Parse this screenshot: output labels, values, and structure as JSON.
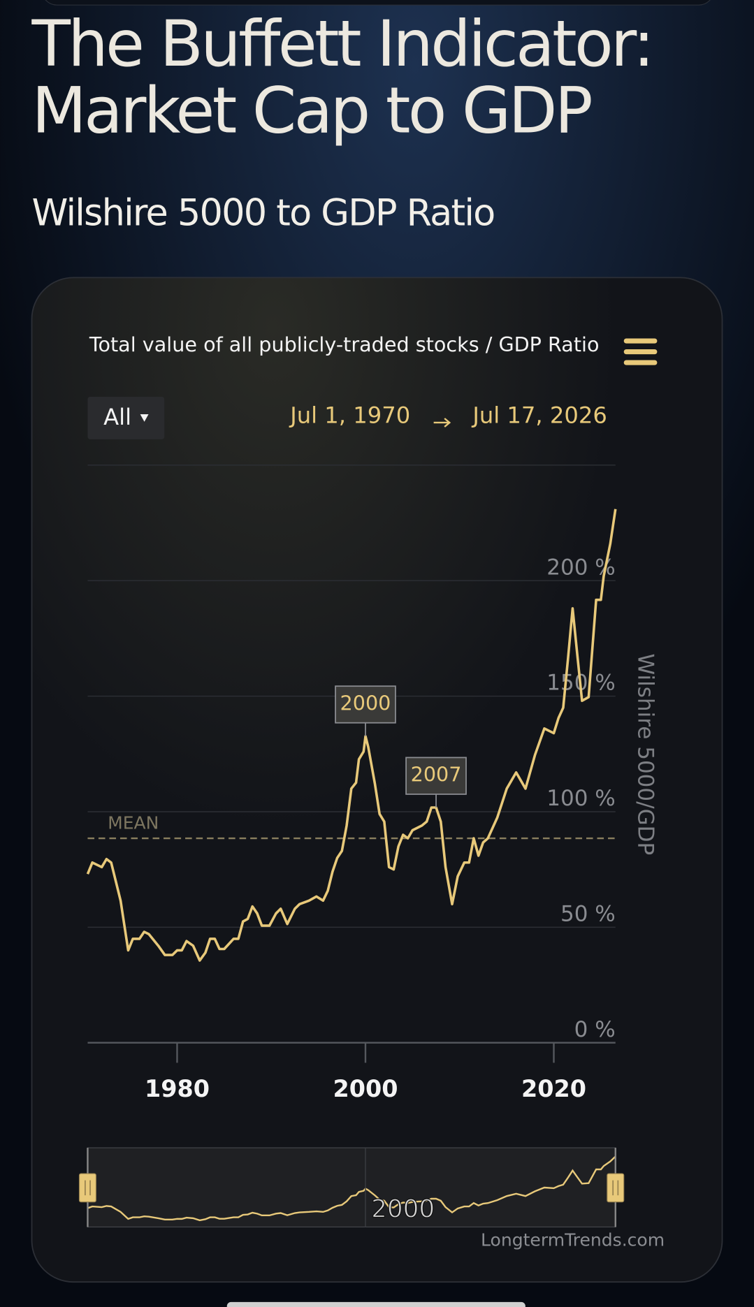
{
  "header": {
    "title_lines": [
      "The Buffett Indicator:",
      "Market Cap to GDP"
    ],
    "subtitle": "Wilshire 5000 to GDP Ratio",
    "range_button": "All",
    "date_from": "Jul 1, 1970",
    "date_to": "Jul 17, 2026",
    "credit": "LongtermTrends.com"
  },
  "chart_data": {
    "type": "line",
    "title": "Total value of all publicly-traded stocks / GDP Ratio",
    "y_label": "Wilshire 5000/GDP",
    "color": "#e8c97a",
    "x": [
      1970.5,
      1971,
      1972,
      1972.5,
      1973,
      1974,
      1974.8,
      1975.3,
      1976,
      1976.5,
      1977,
      1978,
      1978.7,
      1979.5,
      1980,
      1980.5,
      1981,
      1981.7,
      1982.4,
      1983,
      1983.5,
      1984,
      1984.5,
      1985,
      1986,
      1986.5,
      1987,
      1987.5,
      1988,
      1988.5,
      1989,
      1989.8,
      1990.5,
      1991,
      1991.7,
      1992.5,
      1993,
      1994,
      1994.8,
      1995.5,
      1996,
      1996.5,
      1997,
      1997.5,
      1998,
      1998.5,
      1999,
      1999.3,
      1999.8,
      2000,
      2000.3,
      2001,
      2001.5,
      2002,
      2002.5,
      2003,
      2003.5,
      2004,
      2004.5,
      2005,
      2006,
      2006.5,
      2007,
      2007.5,
      2008,
      2008.5,
      2009.2,
      2009.8,
      2010.5,
      2011,
      2011.5,
      2012,
      2012.5,
      2013,
      2014,
      2015,
      2016,
      2017,
      2018,
      2019,
      2020,
      2020.5,
      2021,
      2021.5,
      2022,
      2022.5,
      2023,
      2023.7,
      2024.5,
      2025,
      2025.3,
      2026,
      2026.55
    ],
    "values": [
      73,
      78,
      76,
      79.5,
      78,
      61.5,
      40,
      45,
      45,
      48,
      47,
      42,
      38,
      38,
      40,
      40,
      44,
      42,
      35.6,
      39,
      45,
      45,
      40.6,
      40.6,
      45,
      45,
      52.5,
      53.6,
      59,
      56,
      50.7,
      50.7,
      56,
      58,
      51.4,
      58,
      60,
      61.5,
      63.3,
      61.5,
      65.8,
      74,
      80,
      83,
      94,
      110,
      112.6,
      122.7,
      126,
      132.7,
      128,
      112,
      99,
      95.7,
      76,
      75,
      85,
      90,
      88.5,
      92,
      94,
      95.7,
      101.8,
      101.8,
      95.7,
      76,
      60,
      72,
      78,
      78,
      88.5,
      81,
      86.7,
      88.5,
      97.5,
      110,
      117,
      110,
      124.5,
      136,
      134,
      140.6,
      145,
      166,
      188,
      167.6,
      148,
      149.6,
      191.7,
      191.7,
      202,
      216,
      231
    ],
    "xlim": [
      1970.5,
      2026.55
    ],
    "xticks": [
      1980,
      2000,
      2020
    ],
    "ylim": [
      0,
      250
    ],
    "yticks": [
      {
        "value": 0,
        "label": "0 %"
      },
      {
        "value": 50,
        "label": "50 %"
      },
      {
        "value": 100,
        "label": "100 %"
      },
      {
        "value": 150,
        "label": "150 %"
      },
      {
        "value": 200,
        "label": "200 %"
      }
    ],
    "grid": true,
    "mean": 88.5,
    "mean_label": "MEAN",
    "annotations": [
      {
        "label": "2000",
        "x": 2000,
        "y": 132.7
      },
      {
        "label": "2007",
        "x": 2007.5,
        "y": 101.8
      }
    ],
    "navigator_xticks": [
      2000
    ]
  }
}
